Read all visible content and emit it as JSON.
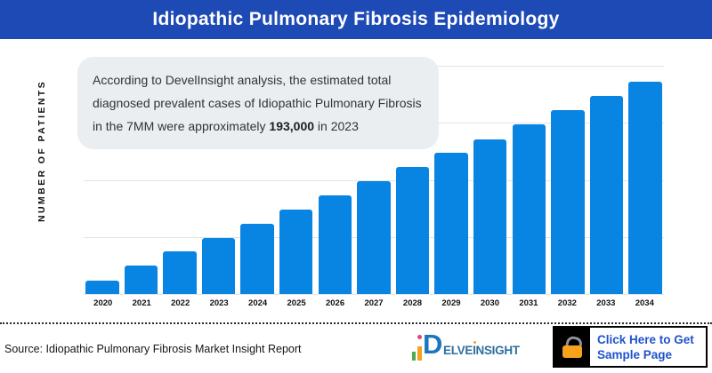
{
  "header": {
    "title": "Idiopathic Pulmonary Fibrosis Epidemiology"
  },
  "chart_data": {
    "type": "bar",
    "title": "Idiopathic Pulmonary Fibrosis Epidemiology",
    "ylabel": "NUMBER OF PATIENTS",
    "xlabel": "",
    "categories": [
      "2020",
      "2021",
      "2022",
      "2023",
      "2024",
      "2025",
      "2026",
      "2027",
      "2028",
      "2029",
      "2030",
      "2031",
      "2032",
      "2033",
      "2034"
    ],
    "values": [
      46,
      97,
      148,
      193,
      243,
      292,
      342,
      391,
      440,
      488,
      536,
      588,
      637,
      685,
      735
    ],
    "unit": "thousand patients",
    "note": "y-axis has no tick labels; values estimated from bar heights anchored to the annotated 2023 value of 193,000",
    "ylim": [
      0,
      790
    ],
    "grid": true,
    "legend": false
  },
  "annotation": {
    "line1": "According to DevelInsight analysis, the estimated total",
    "line2": "diagnosed prevalent cases of Idiopathic Pulmonary Fibrosis",
    "line3_pre": "in the 7MM were approximately ",
    "line3_bold": "193,000",
    "line3_post": " in 2023"
  },
  "footer": {
    "source": "Source: Idiopathic Pulmonary Fibrosis Market Insight Report",
    "logo": {
      "d": "D",
      "part1": "ELVE",
      "i": "I",
      "part2": "NSIGHT"
    },
    "cta_label": "Click Here to Get Sample Page"
  },
  "colors": {
    "banner": "#1E4AB5",
    "bar": "#0884E3",
    "annotation-bg": "#EBEEF1",
    "grid": "#E2E4E6",
    "cta-text": "#2052CC",
    "lock-body": "#F6A21D",
    "lock-shackle": "#8E9299",
    "logo-d": "#1B77BD",
    "logo-text": "#2E6F9F",
    "logo-green": "#4CAE4F",
    "logo-orange": "#F6A21D",
    "logo-dot": "#E0457B"
  }
}
